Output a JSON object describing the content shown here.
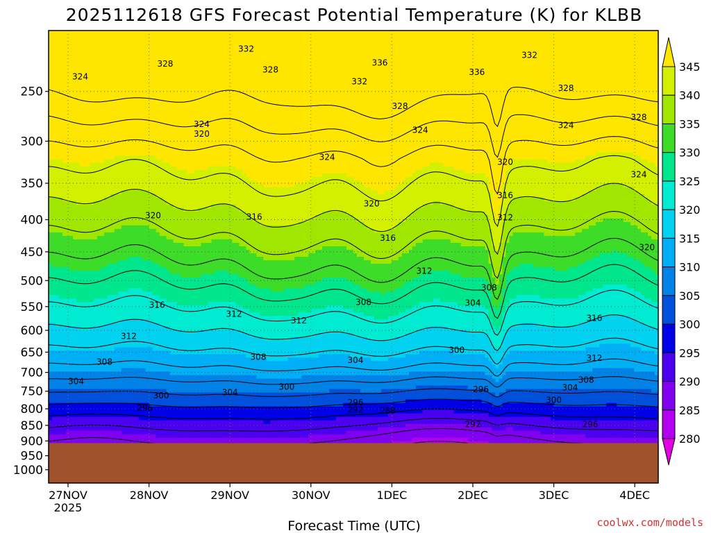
{
  "chart_data": {
    "type": "contour",
    "title": "2025112618 GFS Forecast Potential Temperature (K) for KLBB",
    "xlabel": "Forecast Time (UTC)",
    "ylabel": "",
    "credit": "coolwx.com/models",
    "x_ticks": [
      "27NOV",
      "28NOV",
      "29NOV",
      "30NOV",
      "1DEC",
      "2DEC",
      "3DEC",
      "4DEC"
    ],
    "x_tick_sublabel": "2025",
    "x_range_days": [
      -0.24,
      7.29
    ],
    "y_ticks": [
      250,
      300,
      350,
      400,
      450,
      500,
      550,
      600,
      650,
      700,
      750,
      800,
      850,
      900,
      950,
      1000
    ],
    "y_range_hPa": [
      200,
      1050
    ],
    "y_scale": "log",
    "surface_pressure_hPa": 907,
    "surface_color": "#a0522d",
    "colorbar": {
      "ticks": [
        345,
        340,
        335,
        330,
        325,
        320,
        315,
        310,
        305,
        300,
        295,
        290,
        285,
        280
      ],
      "bins": [
        {
          "lo": 340,
          "hi": 345,
          "color": "#d2f000"
        },
        {
          "lo": 335,
          "hi": 340,
          "color": "#a0e600"
        },
        {
          "lo": 330,
          "hi": 335,
          "color": "#3cdc28"
        },
        {
          "lo": 325,
          "hi": 330,
          "color": "#00e68c"
        },
        {
          "lo": 320,
          "hi": 325,
          "color": "#00ebd2"
        },
        {
          "lo": 315,
          "hi": 320,
          "color": "#00d2f0"
        },
        {
          "lo": 310,
          "hi": 315,
          "color": "#00aff5"
        },
        {
          "lo": 305,
          "hi": 310,
          "color": "#0082e6"
        },
        {
          "lo": 300,
          "hi": 305,
          "color": "#0050dc"
        },
        {
          "lo": 295,
          "hi": 300,
          "color": "#0000e6"
        },
        {
          "lo": 290,
          "hi": 295,
          "color": "#4b00f0"
        },
        {
          "lo": 285,
          "hi": 290,
          "color": "#8200f0"
        },
        {
          "lo": 280,
          "hi": 285,
          "color": "#b400f0"
        }
      ],
      "top_arrow_color": "#ffe600",
      "bottom_arrow_color": "#e600e6"
    },
    "contour_interval_K": 4,
    "contour_labels": [
      {
        "value": 324,
        "day": 0.15,
        "p": 237
      },
      {
        "value": 328,
        "day": 1.2,
        "p": 226
      },
      {
        "value": 332,
        "day": 2.2,
        "p": 214
      },
      {
        "value": 328,
        "day": 2.5,
        "p": 231
      },
      {
        "value": 336,
        "day": 3.85,
        "p": 225
      },
      {
        "value": 332,
        "day": 3.6,
        "p": 241
      },
      {
        "value": 328,
        "day": 4.1,
        "p": 264
      },
      {
        "value": 336,
        "day": 5.05,
        "p": 233
      },
      {
        "value": 332,
        "day": 5.7,
        "p": 219
      },
      {
        "value": 328,
        "day": 6.15,
        "p": 247
      },
      {
        "value": 328,
        "day": 7.05,
        "p": 275
      },
      {
        "value": 324,
        "day": 1.65,
        "p": 282
      },
      {
        "value": 320,
        "day": 1.65,
        "p": 292
      },
      {
        "value": 324,
        "day": 3.2,
        "p": 318
      },
      {
        "value": 324,
        "day": 4.35,
        "p": 288
      },
      {
        "value": 324,
        "day": 6.15,
        "p": 283
      },
      {
        "value": 324,
        "day": 7.05,
        "p": 339
      },
      {
        "value": 320,
        "day": 5.4,
        "p": 324
      },
      {
        "value": 316,
        "day": 5.4,
        "p": 366
      },
      {
        "value": 312,
        "day": 5.4,
        "p": 397
      },
      {
        "value": 320,
        "day": 1.05,
        "p": 394
      },
      {
        "value": 316,
        "day": 2.3,
        "p": 396
      },
      {
        "value": 320,
        "day": 3.75,
        "p": 377
      },
      {
        "value": 316,
        "day": 3.95,
        "p": 428
      },
      {
        "value": 312,
        "day": 4.4,
        "p": 483
      },
      {
        "value": 320,
        "day": 7.15,
        "p": 443
      },
      {
        "value": 316,
        "day": 1.1,
        "p": 547
      },
      {
        "value": 312,
        "day": 2.05,
        "p": 565
      },
      {
        "value": 312,
        "day": 2.85,
        "p": 579
      },
      {
        "value": 308,
        "day": 3.65,
        "p": 541
      },
      {
        "value": 308,
        "day": 5.2,
        "p": 513
      },
      {
        "value": 304,
        "day": 5.0,
        "p": 543
      },
      {
        "value": 300,
        "day": 4.8,
        "p": 645
      },
      {
        "value": 316,
        "day": 6.5,
        "p": 574
      },
      {
        "value": 312,
        "day": 0.75,
        "p": 613
      },
      {
        "value": 308,
        "day": 0.45,
        "p": 674
      },
      {
        "value": 308,
        "day": 2.35,
        "p": 662
      },
      {
        "value": 304,
        "day": 3.55,
        "p": 669
      },
      {
        "value": 312,
        "day": 6.5,
        "p": 664
      },
      {
        "value": 308,
        "day": 6.4,
        "p": 720
      },
      {
        "value": 304,
        "day": 0.1,
        "p": 723
      },
      {
        "value": 304,
        "day": 2.0,
        "p": 753
      },
      {
        "value": 300,
        "day": 2.7,
        "p": 738
      },
      {
        "value": 300,
        "day": 1.15,
        "p": 762
      },
      {
        "value": 296,
        "day": 0.95,
        "p": 798
      },
      {
        "value": 296,
        "day": 3.55,
        "p": 782
      },
      {
        "value": 292,
        "day": 3.55,
        "p": 803
      },
      {
        "value": 288,
        "day": 3.95,
        "p": 806
      },
      {
        "value": 296,
        "day": 5.1,
        "p": 745
      },
      {
        "value": 304,
        "day": 6.2,
        "p": 740
      },
      {
        "value": 300,
        "day": 6.0,
        "p": 775
      },
      {
        "value": 292,
        "day": 5.0,
        "p": 847
      },
      {
        "value": 296,
        "day": 6.45,
        "p": 847
      }
    ],
    "features": [
      "Deep cold (below 300 K) air mass between 800 hPa and the surface, deepening 1DEC-3DEC",
      "Sharp warm intrusion near 2DEC 06Z with isentropes folding down from 320 K",
      "Highest values (above 335 K) near 250 hPa on 30NOV-2DEC"
    ]
  }
}
